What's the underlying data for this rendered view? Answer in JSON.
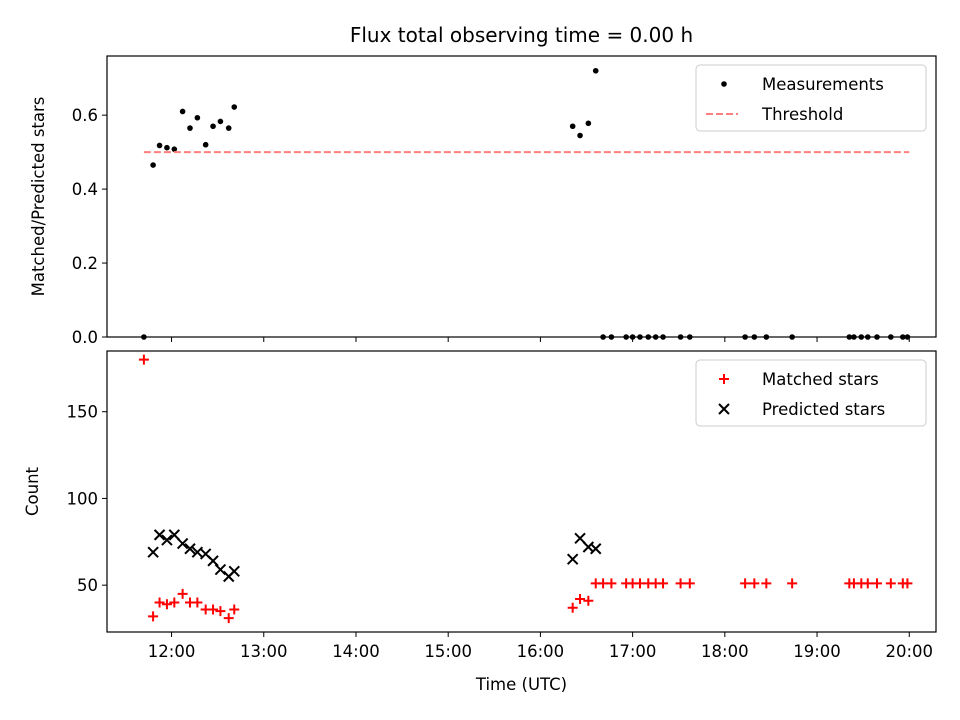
{
  "chart_data": [
    {
      "type": "scatter",
      "title": "Flux total observing time = 0.00 h",
      "xlabel": "",
      "ylabel": "Matched/Predicted stars",
      "ylim": [
        0,
        0.76
      ],
      "yticks": [
        0.0,
        0.2,
        0.4,
        0.6
      ],
      "ytick_labels": [
        "0.0",
        "0.2",
        "0.4",
        "0.6"
      ],
      "xticks": [
        12,
        13,
        14,
        15,
        16,
        17,
        18,
        19,
        20
      ],
      "legend_placement": "top-right",
      "series": [
        {
          "name": "Measurements",
          "marker": "dot",
          "color": "#000000",
          "points": [
            [
              11.7,
              0.0
            ],
            [
              11.8,
              0.465
            ],
            [
              11.87,
              0.518
            ],
            [
              11.95,
              0.512
            ],
            [
              12.03,
              0.508
            ],
            [
              12.12,
              0.61
            ],
            [
              12.2,
              0.565
            ],
            [
              12.28,
              0.593
            ],
            [
              12.37,
              0.52
            ],
            [
              12.45,
              0.57
            ],
            [
              12.53,
              0.583
            ],
            [
              12.62,
              0.565
            ],
            [
              12.68,
              0.622
            ],
            [
              16.35,
              0.57
            ],
            [
              16.43,
              0.545
            ],
            [
              16.52,
              0.578
            ],
            [
              16.6,
              0.72
            ],
            [
              16.68,
              0.0
            ],
            [
              16.77,
              0.0
            ],
            [
              16.93,
              0.0
            ],
            [
              17.0,
              0.0
            ],
            [
              17.08,
              0.0
            ],
            [
              17.17,
              0.0
            ],
            [
              17.25,
              0.0
            ],
            [
              17.33,
              0.0
            ],
            [
              17.52,
              0.0
            ],
            [
              17.62,
              0.0
            ],
            [
              18.22,
              0.0
            ],
            [
              18.32,
              0.0
            ],
            [
              18.45,
              0.0
            ],
            [
              18.73,
              0.0
            ],
            [
              19.35,
              0.0
            ],
            [
              19.4,
              0.0
            ],
            [
              19.48,
              0.0
            ],
            [
              19.55,
              0.0
            ],
            [
              19.65,
              0.0
            ],
            [
              19.8,
              0.0
            ],
            [
              19.93,
              0.0
            ],
            [
              19.98,
              0.0
            ]
          ]
        },
        {
          "name": "Threshold",
          "style": "dashed",
          "color": "#ff7f7f",
          "points": [
            [
              11.7,
              0.5
            ],
            [
              20.0,
              0.5
            ]
          ]
        }
      ]
    },
    {
      "type": "scatter",
      "xlabel": "Time (UTC)",
      "ylabel": "Count",
      "ylim": [
        23,
        185
      ],
      "yticks": [
        50,
        100,
        150
      ],
      "ytick_labels": [
        "50",
        "100",
        "150"
      ],
      "xticks": [
        12,
        13,
        14,
        15,
        16,
        17,
        18,
        19,
        20
      ],
      "xtick_labels": [
        "12:00",
        "13:00",
        "14:00",
        "15:00",
        "16:00",
        "17:00",
        "18:00",
        "19:00",
        "20:00"
      ],
      "legend_placement": "top-right",
      "series": [
        {
          "name": "Matched stars",
          "marker": "plus",
          "color": "#ff0000",
          "points": [
            [
              11.7,
              180
            ],
            [
              11.8,
              32
            ],
            [
              11.87,
              40
            ],
            [
              11.95,
              39
            ],
            [
              12.03,
              40
            ],
            [
              12.12,
              45
            ],
            [
              12.2,
              40
            ],
            [
              12.28,
              40
            ],
            [
              12.37,
              36
            ],
            [
              12.45,
              36
            ],
            [
              12.53,
              35
            ],
            [
              12.62,
              31
            ],
            [
              12.68,
              36
            ],
            [
              16.35,
              37
            ],
            [
              16.43,
              42
            ],
            [
              16.52,
              41
            ],
            [
              16.6,
              51
            ],
            [
              16.68,
              51
            ],
            [
              16.77,
              51
            ],
            [
              16.93,
              51
            ],
            [
              17.0,
              51
            ],
            [
              17.08,
              51
            ],
            [
              17.17,
              51
            ],
            [
              17.25,
              51
            ],
            [
              17.33,
              51
            ],
            [
              17.52,
              51
            ],
            [
              17.62,
              51
            ],
            [
              18.22,
              51
            ],
            [
              18.32,
              51
            ],
            [
              18.45,
              51
            ],
            [
              18.73,
              51
            ],
            [
              19.35,
              51
            ],
            [
              19.4,
              51
            ],
            [
              19.48,
              51
            ],
            [
              19.55,
              51
            ],
            [
              19.65,
              51
            ],
            [
              19.8,
              51
            ],
            [
              19.93,
              51
            ],
            [
              19.98,
              51
            ]
          ]
        },
        {
          "name": "Predicted stars",
          "marker": "x",
          "color": "#000000",
          "points": [
            [
              11.8,
              69
            ],
            [
              11.87,
              79
            ],
            [
              11.95,
              76
            ],
            [
              12.03,
              79
            ],
            [
              12.12,
              74
            ],
            [
              12.2,
              71
            ],
            [
              12.28,
              69
            ],
            [
              12.37,
              68
            ],
            [
              12.45,
              64
            ],
            [
              12.53,
              59
            ],
            [
              12.62,
              55
            ],
            [
              12.68,
              58
            ],
            [
              16.35,
              65
            ],
            [
              16.43,
              77
            ],
            [
              16.52,
              72
            ],
            [
              16.6,
              71
            ]
          ]
        }
      ]
    }
  ]
}
